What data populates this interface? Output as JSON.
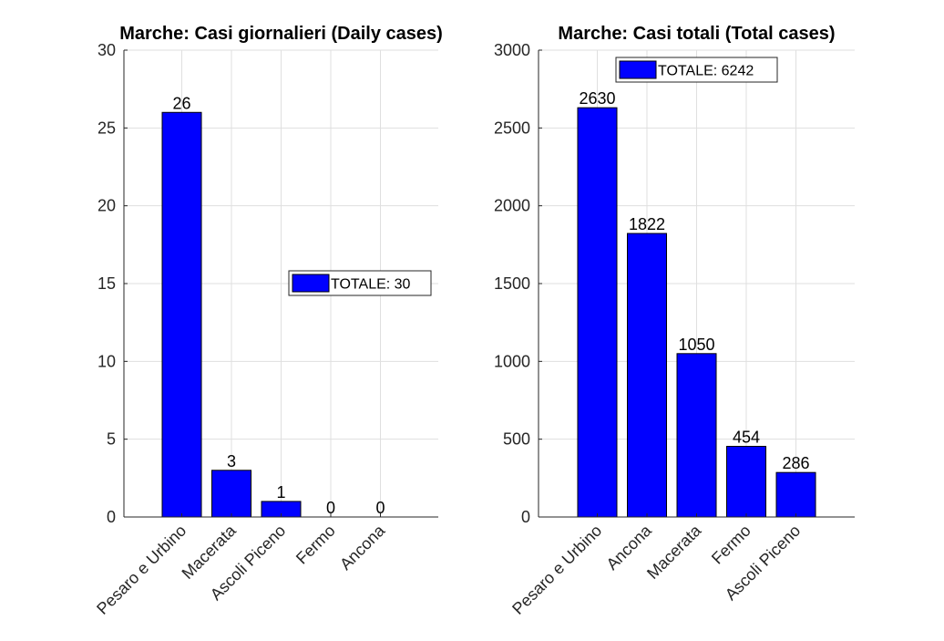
{
  "chart_data": [
    {
      "type": "bar",
      "title": "Marche: Casi giornalieri (Daily cases)",
      "categories": [
        "Pesaro e Urbino",
        "Macerata",
        "Ascoli Piceno",
        "Fermo",
        "Ancona"
      ],
      "values": [
        26,
        3,
        1,
        0,
        0
      ],
      "data_labels": [
        "26",
        "3",
        "1",
        "0",
        "0"
      ],
      "yticks": [
        0,
        5,
        10,
        15,
        20,
        25,
        30
      ],
      "ytick_labels": [
        "0",
        "5",
        "10",
        "15",
        "20",
        "25",
        "30"
      ],
      "ylim": [
        0,
        30
      ],
      "legend": "TOTALE: 30",
      "legend_position": "right",
      "grid": true,
      "bar_color": "#0000ff",
      "xlabel": "",
      "ylabel": ""
    },
    {
      "type": "bar",
      "title": "Marche: Casi totali (Total cases)",
      "categories": [
        "Pesaro e Urbino",
        "Ancona",
        "Macerata",
        "Fermo",
        "Ascoli Piceno"
      ],
      "values": [
        2630,
        1822,
        1050,
        454,
        286
      ],
      "data_labels": [
        "2630",
        "1822",
        "1050",
        "454",
        "286"
      ],
      "yticks": [
        0,
        500,
        1000,
        1500,
        2000,
        2500,
        3000
      ],
      "ytick_labels": [
        "0",
        "500",
        "1000",
        "1500",
        "2000",
        "2500",
        "3000"
      ],
      "ylim": [
        0,
        3000
      ],
      "legend": "TOTALE: 6242",
      "legend_position": "top",
      "grid": true,
      "bar_color": "#0000ff",
      "xlabel": "",
      "ylabel": ""
    }
  ]
}
